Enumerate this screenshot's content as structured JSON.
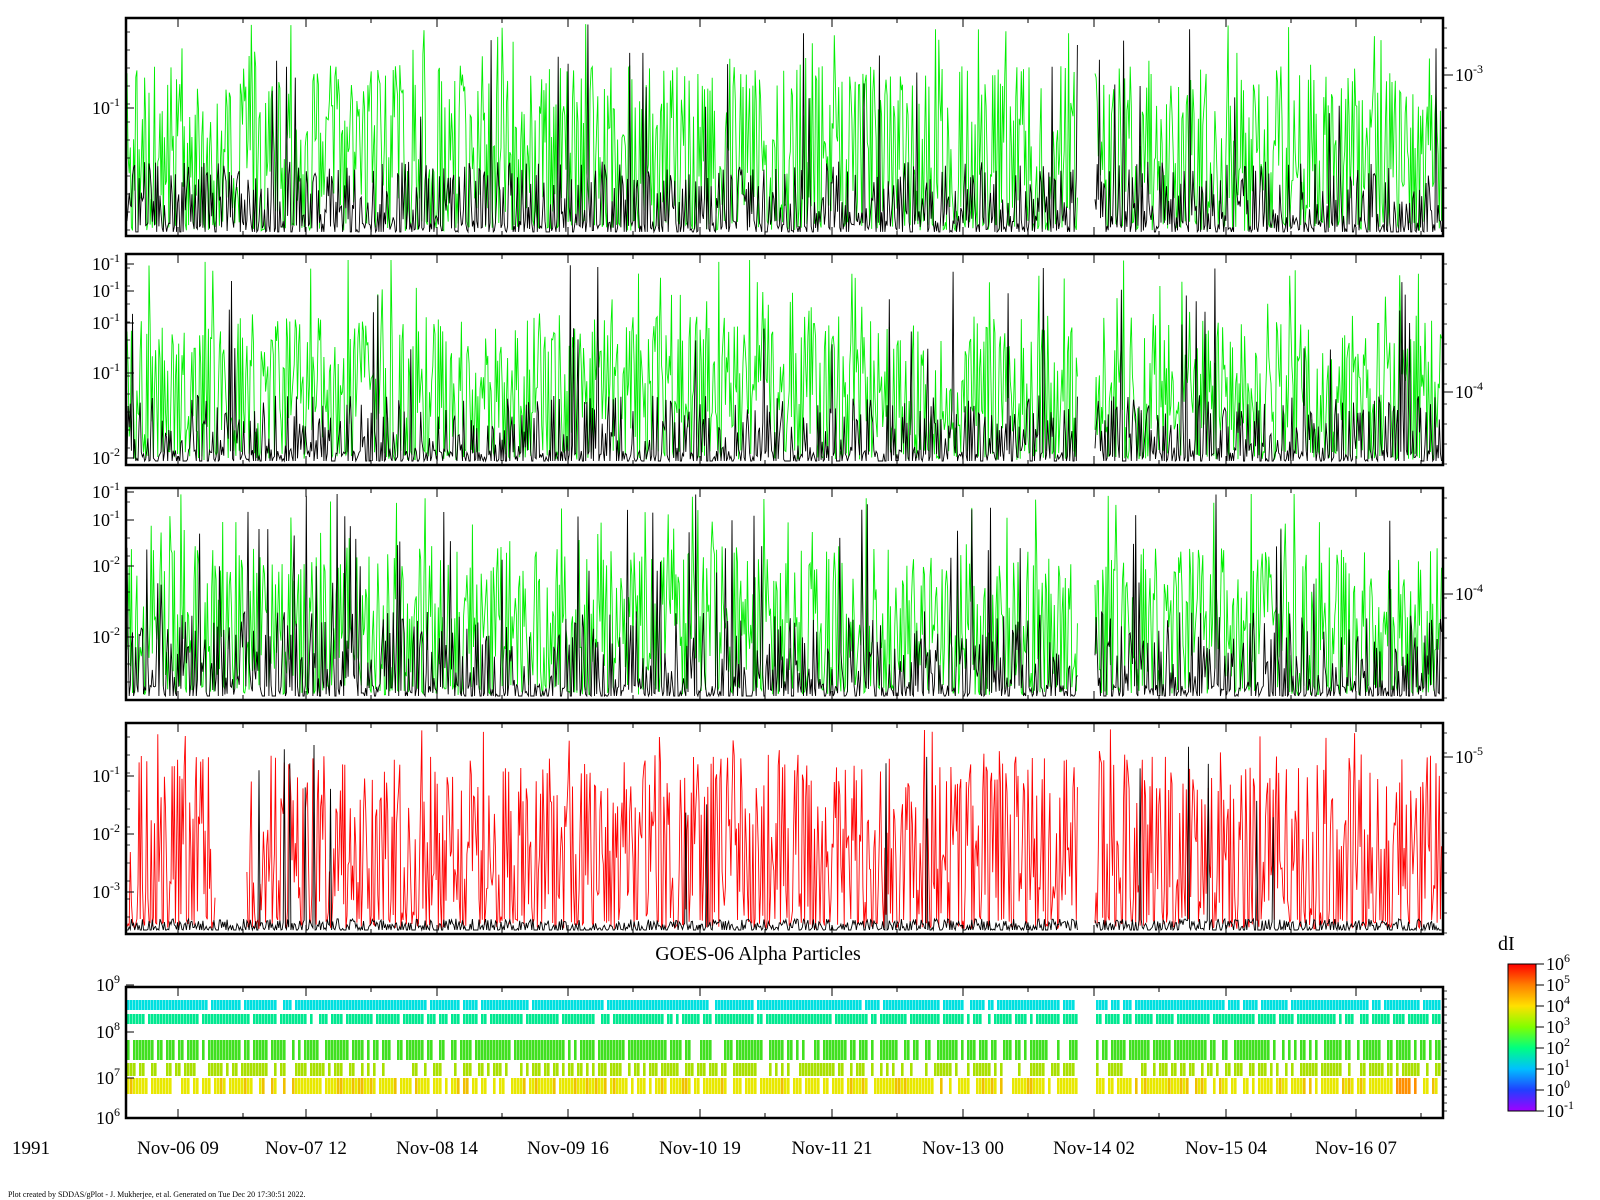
{
  "chart_data": {
    "type": "line",
    "x_start_label": "1991",
    "x_tick_labels": [
      "Nov-06 09",
      "Nov-07 12",
      "Nov-08 14",
      "Nov-09 16",
      "Nov-10 19",
      "Nov-11 21",
      "Nov-13 00",
      "Nov-14 02",
      "Nov-15 04",
      "Nov-16 07"
    ],
    "data_gap": {
      "start_hours": 191.5,
      "end_hours": 194.8
    },
    "panels": [
      {
        "id": "panel-1",
        "type": "line",
        "left_tick_labels": [
          "10-1"
        ],
        "right_tick_labels": [
          "10-3"
        ],
        "series": [
          {
            "color": "#00ee00",
            "level": 0.45,
            "spread": 0.35,
            "spike_prob": 0.06
          },
          {
            "color": "#000000",
            "level": 0.12,
            "spread": 0.22,
            "spike_prob": 0.02
          }
        ]
      },
      {
        "id": "panel-2",
        "type": "line",
        "left_tick_labels": [
          "10-1",
          "10-1",
          "10-1",
          "10-1",
          "10-2"
        ],
        "right_tick_labels": [
          "10-4"
        ],
        "series": [
          {
            "color": "#00ee00",
            "level": 0.42,
            "spread": 0.3,
            "spike_prob": 0.05
          },
          {
            "color": "#000000",
            "level": 0.08,
            "spread": 0.25,
            "spike_prob": 0.03
          }
        ]
      },
      {
        "id": "panel-3",
        "type": "line",
        "left_tick_labels": [
          "10-1",
          "10-1",
          "10-2",
          "10-2"
        ],
        "right_tick_labels": [
          "10-4"
        ],
        "series": [
          {
            "color": "#00ee00",
            "level": 0.42,
            "spread": 0.32,
            "spike_prob": 0.05
          },
          {
            "color": "#000000",
            "level": 0.12,
            "spread": 0.3,
            "spike_prob": 0.04
          }
        ]
      },
      {
        "id": "panel-4",
        "type": "line",
        "left_tick_labels": [
          "10-1",
          "10-2",
          "10-3"
        ],
        "right_tick_labels": [
          "10-5"
        ],
        "series": [
          {
            "color": "#ff0000",
            "level": 0.45,
            "spread": 0.42,
            "spike_prob": 0.05
          },
          {
            "color": "#000000",
            "level": 0.01,
            "spread": 0.05,
            "spike_prob": 0.01
          }
        ]
      },
      {
        "id": "panel-5",
        "type": "heatmap",
        "title": "GOES-06 Alpha Particles",
        "left_tick_labels": [
          "10^9",
          "10^8",
          "10^7",
          "10^6"
        ],
        "bands": [
          {
            "color": "#00e0e0",
            "fill_prob": 0.93
          },
          {
            "color": "#00e890",
            "fill_prob": 0.85
          },
          {
            "color": "#40e020",
            "fill_prob": 0.7
          },
          {
            "color": "#a8e000",
            "fill_prob": 0.55
          },
          {
            "color": "#e8e800",
            "fill_prob": 0.78
          }
        ]
      }
    ],
    "colorbar": {
      "label": "dI",
      "tick_labels": [
        "10^6",
        "10^5",
        "10^4",
        "10^3",
        "10^2",
        "10^1",
        "10^0",
        "10^-1"
      ],
      "colors": [
        "#ff0000",
        "#ff8000",
        "#ffe000",
        "#80ff00",
        "#00ff80",
        "#00c0ff",
        "#2040ff",
        "#a000ff"
      ]
    }
  },
  "footer": {
    "text": "Plot created by SDDAS/gPlot - J. Mukherjee, et al.  Generated on Tue Dec 20 17:30:51 2022."
  }
}
